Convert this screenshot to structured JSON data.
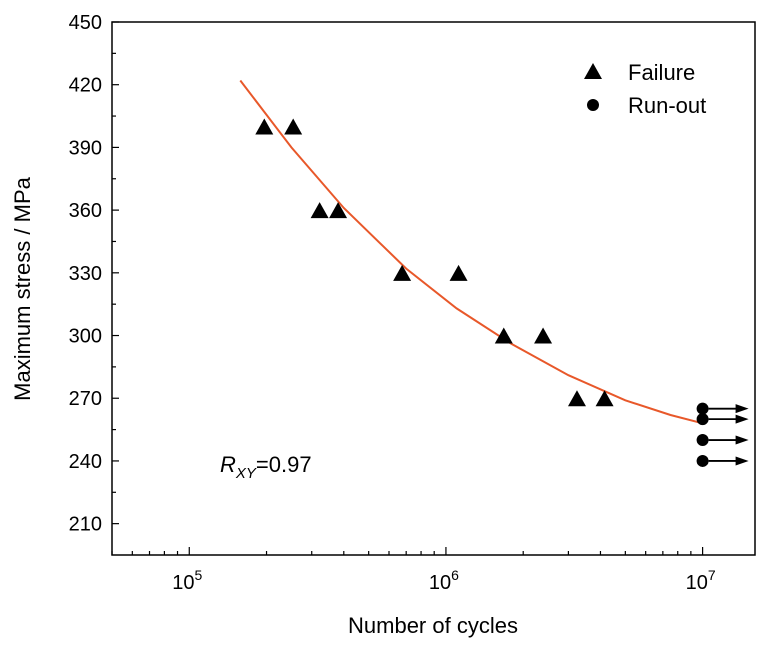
{
  "chart_data": {
    "type": "scatter",
    "xlabel": "Number of cycles",
    "ylabel": "Maximum stress / MPa",
    "x_scale": "log",
    "xlim": [
      50000,
      16000000
    ],
    "ylim": [
      195,
      450
    ],
    "x_ticks": [
      100000,
      1000000,
      10000000
    ],
    "x_tick_base": "10",
    "x_tick_exponents": [
      "5",
      "6",
      "7"
    ],
    "y_ticks": [
      "210",
      "240",
      "270",
      "300",
      "330",
      "360",
      "390",
      "420",
      "450"
    ],
    "grid": false,
    "legend_position": "top-right",
    "series": [
      {
        "name": "Failure",
        "marker": "triangle",
        "color": "#000000",
        "points": [
          {
            "x": 196000,
            "y": 400
          },
          {
            "x": 254000,
            "y": 400
          },
          {
            "x": 322000,
            "y": 360
          },
          {
            "x": 380000,
            "y": 360
          },
          {
            "x": 675000,
            "y": 330
          },
          {
            "x": 1120000,
            "y": 330
          },
          {
            "x": 1680000,
            "y": 300
          },
          {
            "x": 2390000,
            "y": 300
          },
          {
            "x": 3240000,
            "y": 270
          },
          {
            "x": 4150000,
            "y": 270
          }
        ]
      },
      {
        "name": "Run-out",
        "marker": "circle",
        "color": "#000000",
        "arrow": "right",
        "points": [
          {
            "x": 10000000,
            "y": 265
          },
          {
            "x": 10000000,
            "y": 260
          },
          {
            "x": 10000000,
            "y": 250
          },
          {
            "x": 10000000,
            "y": 240
          }
        ]
      }
    ],
    "fit_line": {
      "color": "#e8582a",
      "points": [
        {
          "x": 158000,
          "y": 422
        },
        {
          "x": 250000,
          "y": 390
        },
        {
          "x": 400000,
          "y": 361
        },
        {
          "x": 700000,
          "y": 332
        },
        {
          "x": 1100000,
          "y": 313
        },
        {
          "x": 1800000,
          "y": 296
        },
        {
          "x": 3000000,
          "y": 281
        },
        {
          "x": 5000000,
          "y": 269
        },
        {
          "x": 7500000,
          "y": 262
        },
        {
          "x": 10000000,
          "y": 258
        }
      ]
    },
    "annotation": {
      "R": "R",
      "subscript": "XY",
      "value": "=0.97"
    }
  }
}
